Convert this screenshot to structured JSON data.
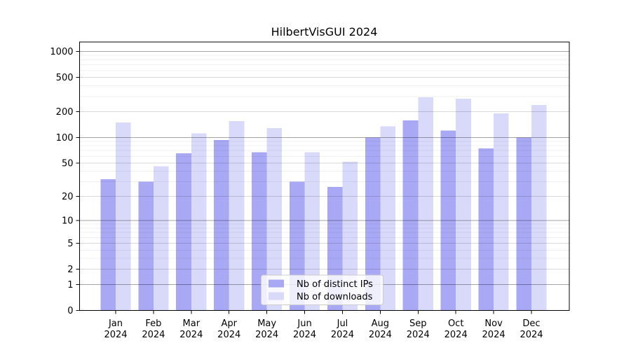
{
  "chart_data": {
    "type": "bar",
    "title": "HilbertVisGUI 2024",
    "categories": [
      "Jan 2024",
      "Feb 2024",
      "Mar 2024",
      "Apr 2024",
      "May 2024",
      "Jun 2024",
      "Jul 2024",
      "Aug 2024",
      "Sep 2024",
      "Oct 2024",
      "Nov 2024",
      "Dec 2024"
    ],
    "months": [
      "Jan",
      "Feb",
      "Mar",
      "Apr",
      "May",
      "Jun",
      "Jul",
      "Aug",
      "Sep",
      "Oct",
      "Nov",
      "Dec"
    ],
    "x_year_label": "2024",
    "series": [
      {
        "name": "Nb of distinct IPs",
        "color": "#a8a8f4",
        "values": [
          32,
          30,
          65,
          93,
          67,
          30,
          26,
          100,
          158,
          120,
          74,
          100
        ]
      },
      {
        "name": "Nb of downloads",
        "color": "#d9d9fa",
        "values": [
          150,
          46,
          112,
          155,
          128,
          67,
          52,
          135,
          293,
          283,
          190,
          239
        ]
      }
    ],
    "xlabel": "",
    "ylabel": "",
    "y_scale": "log10(1+y)",
    "y_ticks": [
      0,
      1,
      2,
      5,
      10,
      20,
      50,
      100,
      200,
      500,
      1000
    ],
    "ylim": [
      0,
      1310
    ],
    "grid": true,
    "legend_position": "lower center",
    "axis_color": "#000000",
    "grid_decade_color": "rgba(0,0,0,0.35)",
    "grid_sub_color": "rgba(0,0,0,0.15)",
    "grid_minor_color": "rgba(0,0,0,0.06)",
    "legend_border_color": "#cccccc",
    "legend_background": "rgba(255,255,255,0.8)"
  }
}
